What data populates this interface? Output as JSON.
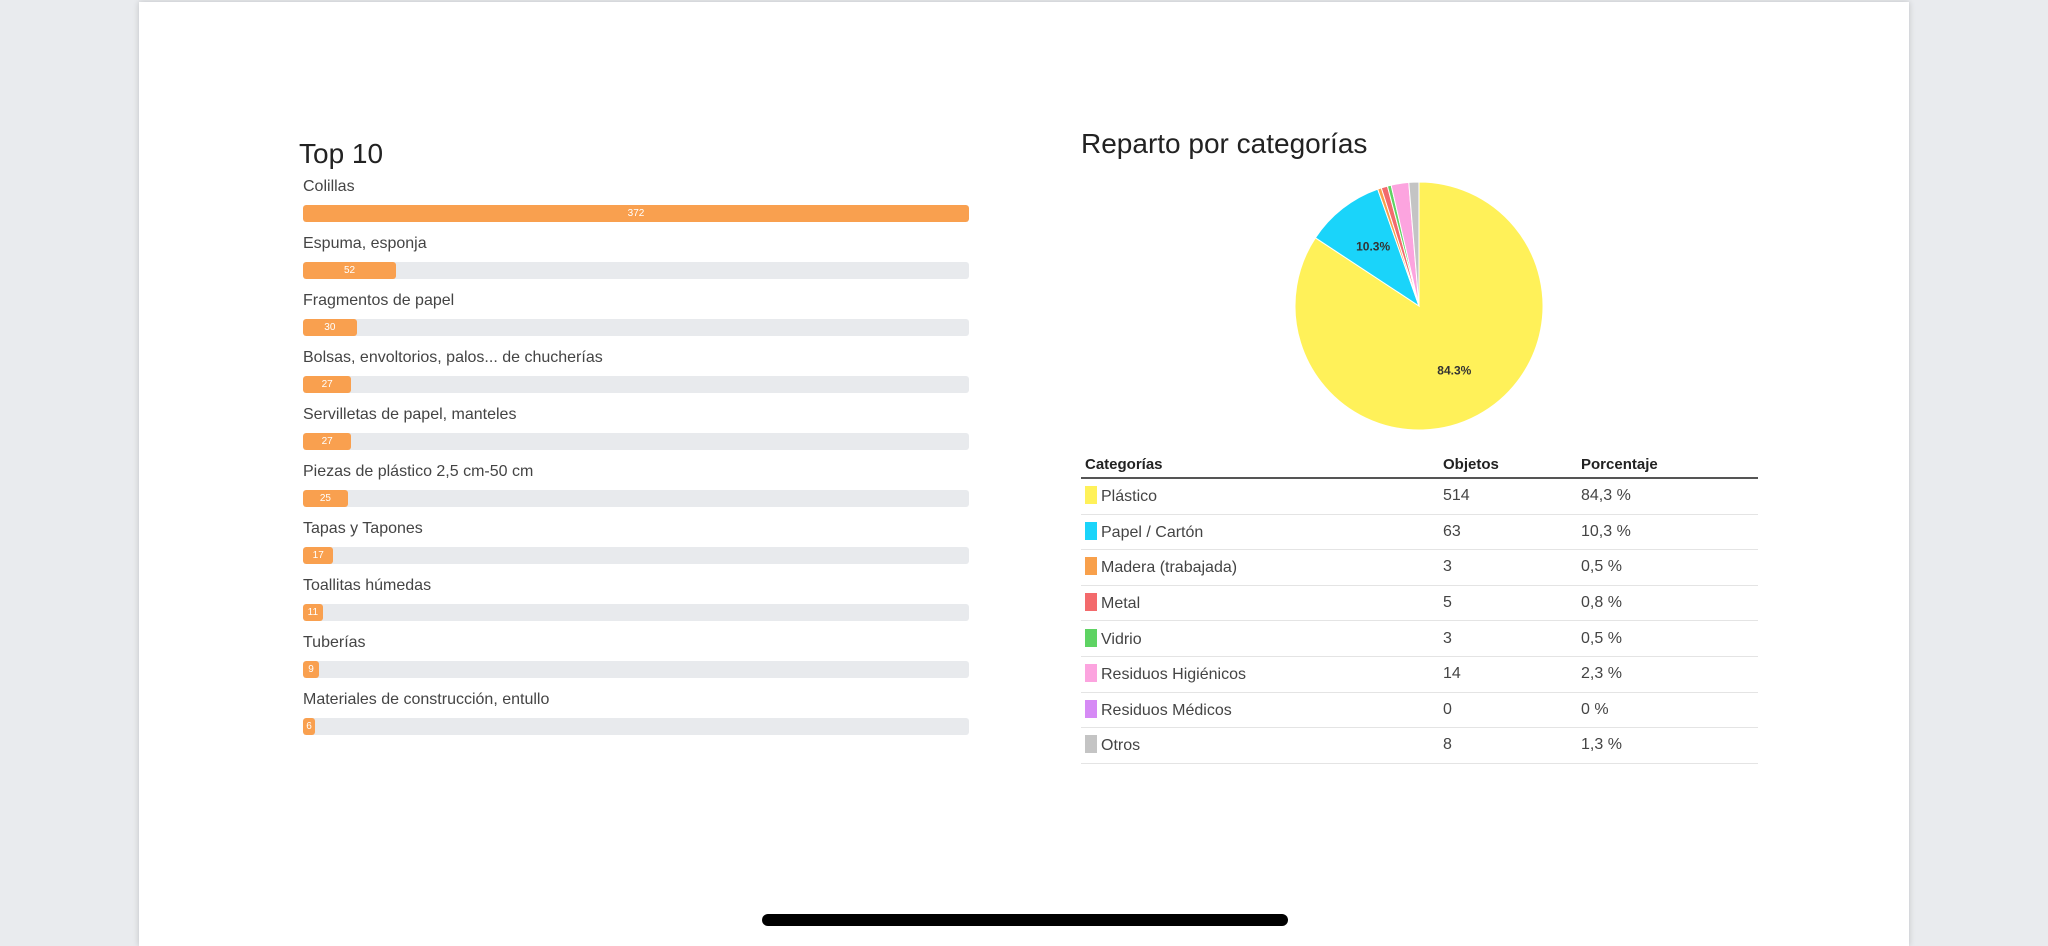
{
  "chart_data": [
    {
      "type": "bar",
      "title": "Top 10",
      "orientation": "horizontal",
      "categories": [
        "Colillas",
        "Espuma, esponja",
        "Fragmentos de papel",
        "Bolsas, envoltorios, palos... de chucherías",
        "Servilletas de papel, manteles",
        "Piezas de plástico 2,5 cm-50 cm",
        "Tapas y Tapones",
        "Toallitas húmedas",
        "Tuberías",
        "Materiales de construcción, entullo"
      ],
      "values": [
        372,
        52,
        30,
        27,
        27,
        25,
        17,
        11,
        9,
        6
      ],
      "xlim": [
        0,
        372
      ],
      "bar_color": "#f9a04f"
    },
    {
      "type": "pie",
      "title": "Reparto por categorías",
      "categories": [
        "Plástico",
        "Papel / Cartón",
        "Madera (trabajada)",
        "Metal",
        "Vidrio",
        "Residuos Higiénicos",
        "Residuos Médicos",
        "Otros"
      ],
      "values": [
        514,
        63,
        3,
        5,
        3,
        14,
        0,
        8
      ],
      "colors": [
        "#fff159",
        "#1ad4fa",
        "#f8a04b",
        "#f36a6c",
        "#5ed363",
        "#fca4df",
        "#d68af5",
        "#c4c4c4"
      ],
      "slice_labels": [
        "84.3%",
        "10.3%",
        "",
        "",
        "",
        "",
        "",
        ""
      ],
      "start_angle": "top",
      "direction": "clockwise"
    }
  ],
  "table": {
    "headers": {
      "category": "Categorías",
      "objects": "Objetos",
      "percent": "Porcentaje"
    },
    "rows": [
      {
        "category": "Plástico",
        "objects": "514",
        "percent": "84,3 %",
        "color": "#fff159"
      },
      {
        "category": "Papel / Cartón",
        "objects": "63",
        "percent": "10,3 %",
        "color": "#1ad4fa"
      },
      {
        "category": "Madera (trabajada)",
        "objects": "3",
        "percent": "0,5 %",
        "color": "#f8a04b"
      },
      {
        "category": "Metal",
        "objects": "5",
        "percent": "0,8 %",
        "color": "#f36a6c"
      },
      {
        "category": "Vidrio",
        "objects": "3",
        "percent": "0,5 %",
        "color": "#5ed363"
      },
      {
        "category": "Residuos Higiénicos",
        "objects": "14",
        "percent": "2,3 %",
        "color": "#fca4df"
      },
      {
        "category": "Residuos Médicos",
        "objects": "0",
        "percent": "0 %",
        "color": "#d68af5"
      },
      {
        "category": "Otros",
        "objects": "8",
        "percent": "1,3 %",
        "color": "#c4c4c4"
      }
    ]
  }
}
